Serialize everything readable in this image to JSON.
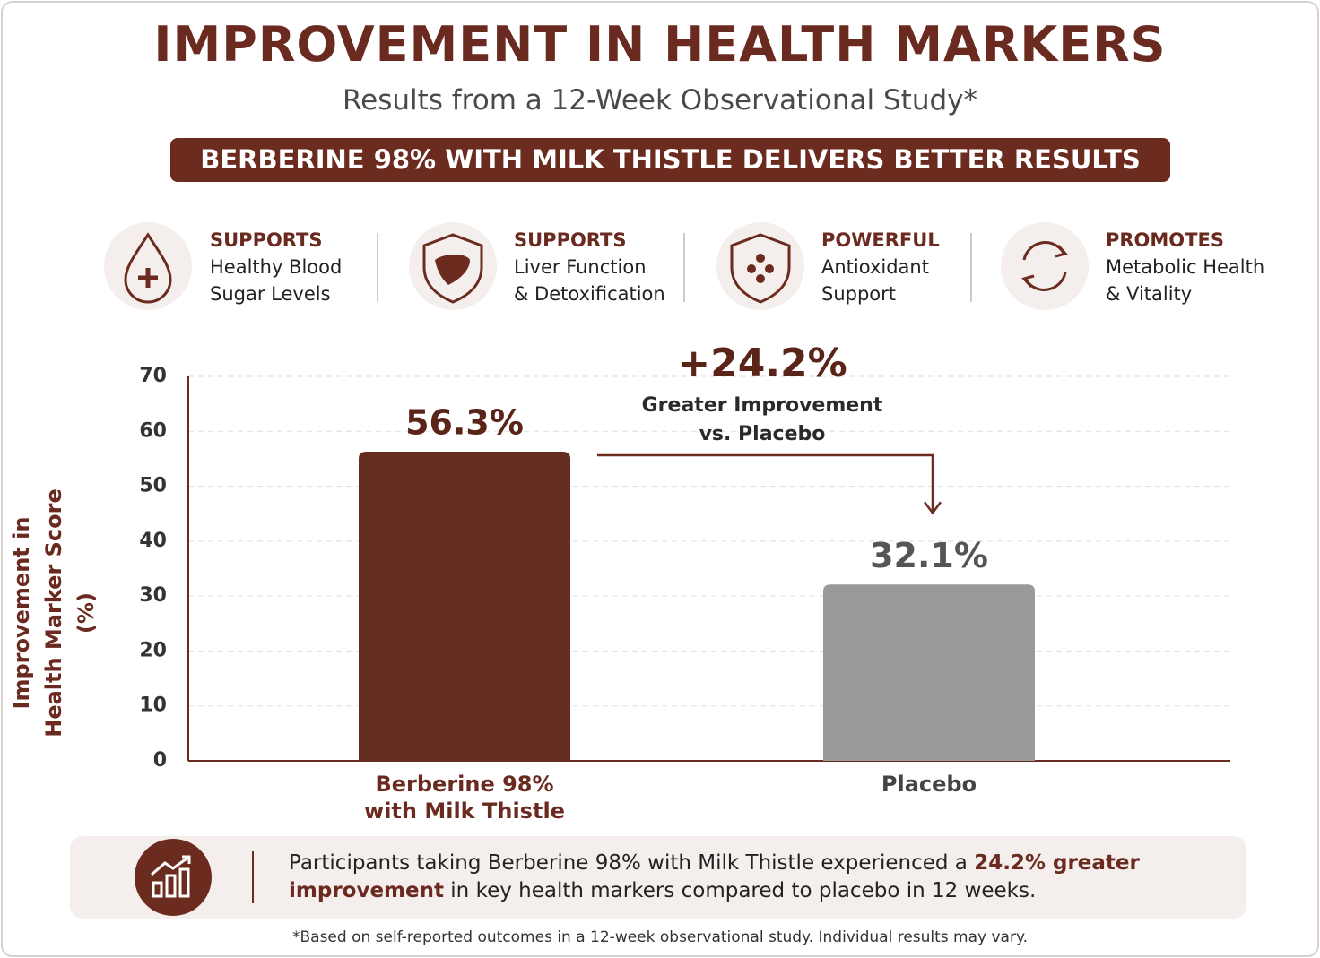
{
  "header": {
    "title": "IMPROVEMENT IN HEALTH MARKERS",
    "subtitle": "Results from a 12-Week Observational Study*",
    "banner": "BERBERINE 98% WITH MILK THISTLE DELIVERS BETTER RESULTS"
  },
  "features": [
    {
      "heading": "SUPPORTS",
      "lines": [
        "Healthy Blood",
        "Sugar Levels"
      ]
    },
    {
      "heading": "SUPPORTS",
      "lines": [
        "Liver Function",
        "& Detoxification"
      ]
    },
    {
      "heading": "POWERFUL",
      "lines": [
        "Antioxidant",
        "Support"
      ]
    },
    {
      "heading": "PROMOTES",
      "lines": [
        "Metabolic Health",
        "& Vitality"
      ]
    }
  ],
  "chart_data": {
    "type": "bar",
    "y_label": "Improvement in Health Marker Score (%)",
    "categories": [
      "Berberine 98% with Milk Thistle",
      "Placebo"
    ],
    "values": [
      56.3,
      32.1
    ],
    "value_labels": [
      "56.3%",
      "32.1%"
    ],
    "colors": [
      "#652d20",
      "#999999"
    ],
    "ylim": [
      0,
      70
    ],
    "yticks": [
      0,
      10,
      20,
      30,
      40,
      50,
      60,
      70
    ],
    "grid": true,
    "annotation": {
      "label": "+24.2%",
      "text": "Greater Improvement vs. Placebo"
    }
  },
  "summary": {
    "parts": [
      "Participants taking Berberine 98% with Milk Thistle experienced a ",
      "24.2% greater improvement",
      " in key health markers compared to placebo in 12 weeks."
    ]
  },
  "footnote": "*Based on self-reported outcomes in a 12-week observational study. Individual results may vary."
}
